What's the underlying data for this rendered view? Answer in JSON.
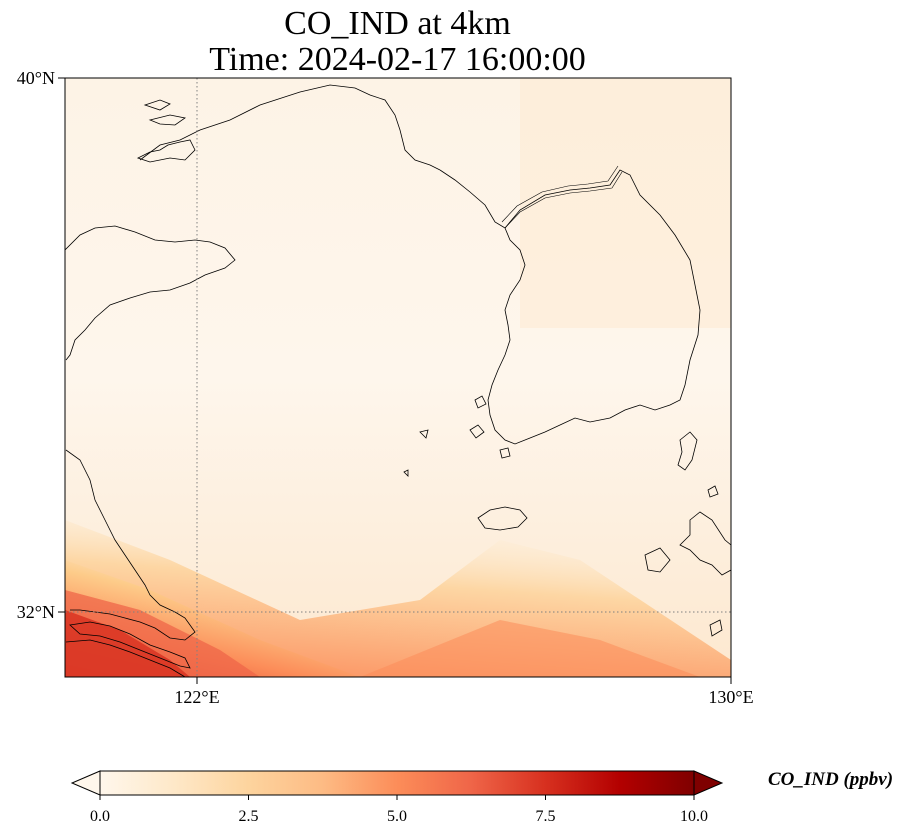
{
  "title": {
    "line1": "CO_IND at 4km",
    "line2": "Time: 2024-02-17 16:00:00"
  },
  "axes": {
    "lat_labels": [
      "40°N",
      "32°N"
    ],
    "lon_labels": [
      "122°E",
      "130°E"
    ]
  },
  "colorbar": {
    "label": "CO_IND (ppbv)",
    "ticks": [
      "0.0",
      "2.5",
      "5.0",
      "7.5",
      "10.0"
    ],
    "cmap": "OrRd",
    "range": [
      0,
      10
    ],
    "extend": "both"
  },
  "colors": {
    "low": "#fff7ec",
    "mid": "#fdbb84",
    "high": "#7f0000",
    "coast": "#000000",
    "grid": "#808080"
  },
  "map_data": {
    "lon_range": [
      120,
      130
    ],
    "lat_range": [
      31,
      40
    ],
    "gridlines": {
      "lon": [
        122
      ],
      "lat": [
        32
      ],
      "style": "dotted"
    },
    "field_description_values_ppbv": {
      "open_sea": 0.3,
      "southwest_corner": 7.5
    }
  }
}
